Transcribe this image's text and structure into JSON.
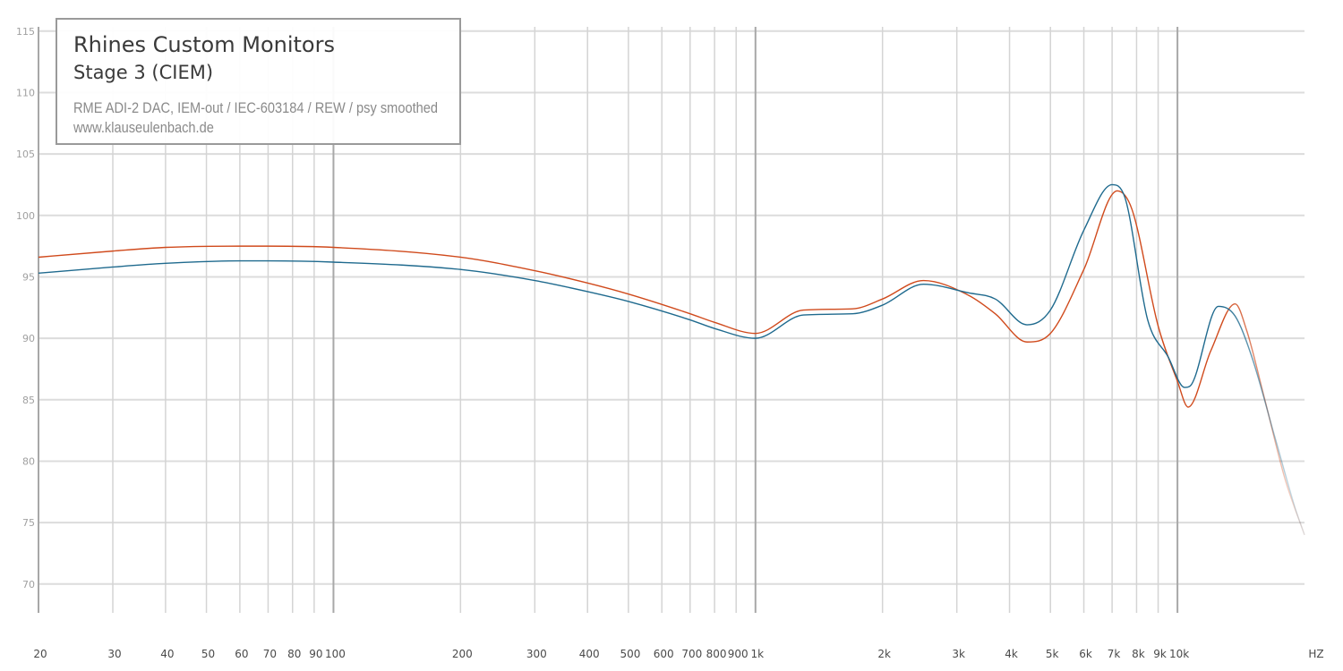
{
  "chart_data": {
    "type": "line",
    "title": "Rhines Custom Monitors",
    "subtitle": "Stage 3 (CIEM)",
    "annotations": [
      "RME ADI-2 DAC, IEM-out / IEC-603184 / REW / psy smoothed",
      "www.klauseulenbach.de"
    ],
    "x_scale": "log",
    "xlim": [
      20,
      20000
    ],
    "ylim": [
      66,
      116
    ],
    "xlabel": "HZ",
    "ylabel": "",
    "x_ticks": [
      20,
      30,
      40,
      50,
      60,
      70,
      80,
      90,
      100,
      200,
      300,
      400,
      500,
      600,
      700,
      800,
      900,
      1000,
      2000,
      3000,
      4000,
      5000,
      6000,
      7000,
      8000,
      9000,
      10000
    ],
    "x_tick_labels": [
      "20",
      "30",
      "40",
      "50",
      "60",
      "70",
      "80",
      "90",
      "100",
      "200",
      "300",
      "400",
      "500",
      "600",
      "700",
      "800",
      "900",
      "1k",
      "2k",
      "3k",
      "4k",
      "5k",
      "6k",
      "7k",
      "8k",
      "9k",
      "10k"
    ],
    "y_ticks": [
      70,
      75,
      80,
      85,
      90,
      95,
      100,
      105,
      110,
      115
    ],
    "y_tick_labels": [
      "70",
      "75",
      "80",
      "85",
      "90",
      "95",
      "100",
      "105",
      "110",
      "115"
    ],
    "grid": true,
    "legend": "top-left",
    "series": [
      {
        "color": "#d04a1c",
        "points": [
          [
            20,
            96.6
          ],
          [
            30,
            97.1
          ],
          [
            40,
            97.4
          ],
          [
            60,
            97.5
          ],
          [
            70,
            97.5
          ],
          [
            100,
            97.4
          ],
          [
            200,
            96.6
          ],
          [
            300,
            95.5
          ],
          [
            400,
            94.5
          ],
          [
            500,
            93.6
          ],
          [
            700,
            92.0
          ],
          [
            800,
            91.3
          ],
          [
            1000,
            90.4
          ],
          [
            1300,
            92.3
          ],
          [
            1700,
            92.4
          ],
          [
            2000,
            93.2
          ],
          [
            2500,
            94.7
          ],
          [
            3200,
            93.5
          ],
          [
            3700,
            92.0
          ],
          [
            4400,
            89.7
          ],
          [
            5000,
            90.4
          ],
          [
            6000,
            95.6
          ],
          [
            7200,
            102.0
          ],
          [
            7800,
            100.5
          ],
          [
            9000,
            91.0
          ],
          [
            10000,
            86.5
          ],
          [
            10600,
            84.4
          ],
          [
            12000,
            89.0
          ],
          [
            13700,
            92.8
          ],
          [
            14600,
            90.6
          ],
          [
            16000,
            85.4
          ],
          [
            18000,
            78.5
          ],
          [
            20000,
            74.0
          ]
        ]
      },
      {
        "color": "#1f6a8e",
        "points": [
          [
            20,
            95.3
          ],
          [
            30,
            95.8
          ],
          [
            40,
            96.1
          ],
          [
            60,
            96.3
          ],
          [
            70,
            96.3
          ],
          [
            100,
            96.2
          ],
          [
            200,
            95.6
          ],
          [
            300,
            94.7
          ],
          [
            400,
            93.8
          ],
          [
            500,
            93.0
          ],
          [
            700,
            91.5
          ],
          [
            800,
            90.8
          ],
          [
            1000,
            90.0
          ],
          [
            1300,
            91.9
          ],
          [
            1700,
            92.0
          ],
          [
            2000,
            92.7
          ],
          [
            2500,
            94.4
          ],
          [
            3200,
            93.7
          ],
          [
            3700,
            93.2
          ],
          [
            4400,
            91.1
          ],
          [
            5000,
            92.3
          ],
          [
            6000,
            98.8
          ],
          [
            7000,
            102.5
          ],
          [
            7500,
            101.5
          ],
          [
            8500,
            91.5
          ],
          [
            9500,
            88.5
          ],
          [
            10400,
            86.0
          ],
          [
            10700,
            86.1
          ],
          [
            12500,
            92.6
          ],
          [
            13700,
            91.8
          ],
          [
            15000,
            88.5
          ],
          [
            17000,
            82.0
          ],
          [
            19000,
            76.2
          ],
          [
            20000,
            74.0
          ]
        ]
      }
    ]
  }
}
